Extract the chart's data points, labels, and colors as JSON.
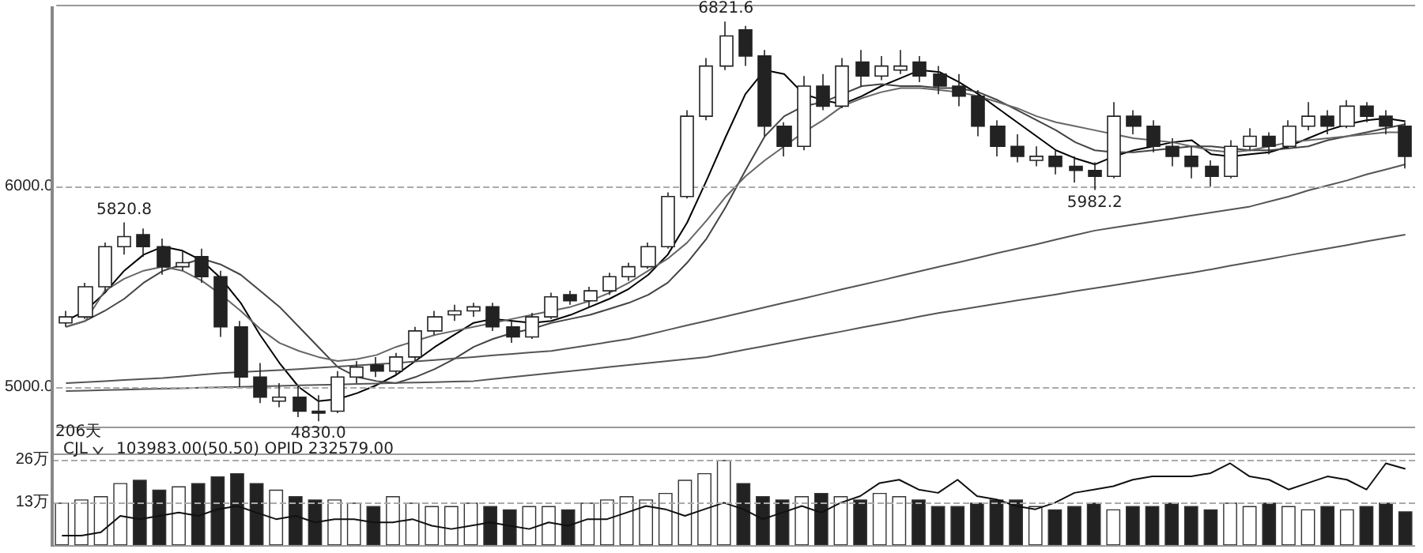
{
  "chart_data": [
    {
      "type": "candlestick",
      "categories": [
        null,
        null,
        null,
        null,
        null,
        null,
        null,
        null,
        null,
        null,
        null,
        null,
        null,
        null,
        null,
        null,
        null,
        null,
        null,
        null,
        null,
        null,
        null,
        null,
        null,
        null,
        null,
        null,
        null,
        null,
        null,
        null,
        null,
        null,
        null,
        null,
        null,
        null,
        null,
        null,
        null,
        null,
        null,
        null,
        null,
        null,
        null,
        null,
        null,
        null,
        null,
        null,
        null,
        null,
        null,
        null,
        null,
        null,
        null,
        null,
        null,
        null,
        null,
        null,
        null,
        null,
        null,
        null,
        null,
        null
      ],
      "ohlc": [
        [
          5320,
          5380,
          5300,
          5350
        ],
        [
          5350,
          5520,
          5340,
          5500
        ],
        [
          5500,
          5720,
          5480,
          5700
        ],
        [
          5700,
          5820.8,
          5660,
          5750
        ],
        [
          5760,
          5790,
          5650,
          5700
        ],
        [
          5700,
          5740,
          5560,
          5600
        ],
        [
          5600,
          5680,
          5580,
          5620
        ],
        [
          5650,
          5690,
          5520,
          5550
        ],
        [
          5550,
          5580,
          5250,
          5300
        ],
        [
          5300,
          5330,
          5000,
          5050
        ],
        [
          5050,
          5120,
          4920,
          4950
        ],
        [
          4930,
          5020,
          4900,
          4950
        ],
        [
          4950,
          5000,
          4850,
          4880
        ],
        [
          4880,
          4960,
          4830,
          4870
        ],
        [
          4880,
          5080,
          4870,
          5050
        ],
        [
          5050,
          5130,
          5020,
          5100
        ],
        [
          5110,
          5150,
          5050,
          5080
        ],
        [
          5080,
          5170,
          5060,
          5150
        ],
        [
          5150,
          5300,
          5130,
          5280
        ],
        [
          5280,
          5380,
          5260,
          5350
        ],
        [
          5360,
          5410,
          5330,
          5380
        ],
        [
          5380,
          5420,
          5350,
          5400
        ],
        [
          5400,
          5420,
          5280,
          5300
        ],
        [
          5300,
          5330,
          5220,
          5250
        ],
        [
          5250,
          5370,
          5240,
          5350
        ],
        [
          5350,
          5470,
          5340,
          5450
        ],
        [
          5460,
          5480,
          5410,
          5430
        ],
        [
          5430,
          5500,
          5400,
          5480
        ],
        [
          5480,
          5570,
          5460,
          5550
        ],
        [
          5550,
          5620,
          5530,
          5600
        ],
        [
          5600,
          5720,
          5590,
          5700
        ],
        [
          5700,
          5970,
          5690,
          5950
        ],
        [
          5950,
          6380,
          5940,
          6350
        ],
        [
          6350,
          6640,
          6330,
          6600
        ],
        [
          6600,
          6821.6,
          6580,
          6750
        ],
        [
          6780,
          6800,
          6600,
          6650
        ],
        [
          6650,
          6680,
          6250,
          6300
        ],
        [
          6300,
          6320,
          6150,
          6200
        ],
        [
          6200,
          6550,
          6180,
          6500
        ],
        [
          6500,
          6560,
          6380,
          6400
        ],
        [
          6400,
          6640,
          6390,
          6600
        ],
        [
          6620,
          6680,
          6500,
          6550
        ],
        [
          6550,
          6650,
          6530,
          6600
        ],
        [
          6580,
          6680,
          6560,
          6600
        ],
        [
          6620,
          6650,
          6520,
          6550
        ],
        [
          6560,
          6600,
          6460,
          6500
        ],
        [
          6500,
          6560,
          6400,
          6450
        ],
        [
          6450,
          6480,
          6250,
          6300
        ],
        [
          6300,
          6330,
          6150,
          6200
        ],
        [
          6200,
          6260,
          6120,
          6150
        ],
        [
          6130,
          6200,
          6100,
          6150
        ],
        [
          6150,
          6180,
          6060,
          6100
        ],
        [
          6100,
          6150,
          6020,
          6080
        ],
        [
          6080,
          6120,
          5982.2,
          6050
        ],
        [
          6050,
          6420,
          6040,
          6350
        ],
        [
          6350,
          6380,
          6260,
          6300
        ],
        [
          6300,
          6330,
          6170,
          6200
        ],
        [
          6200,
          6240,
          6100,
          6150
        ],
        [
          6150,
          6200,
          6040,
          6100
        ],
        [
          6100,
          6130,
          6000,
          6050
        ],
        [
          6050,
          6230,
          6040,
          6200
        ],
        [
          6200,
          6290,
          6180,
          6250
        ],
        [
          6250,
          6270,
          6160,
          6200
        ],
        [
          6200,
          6330,
          6190,
          6300
        ],
        [
          6300,
          6420,
          6280,
          6350
        ],
        [
          6350,
          6380,
          6260,
          6300
        ],
        [
          6300,
          6430,
          6290,
          6400
        ],
        [
          6400,
          6420,
          6320,
          6350
        ],
        [
          6350,
          6380,
          6260,
          6300
        ],
        [
          6300,
          6320,
          6090,
          6150
        ]
      ],
      "series": [
        {
          "type": "line",
          "color": "#000000",
          "values": [
            5330,
            5380,
            5470,
            5580,
            5660,
            5700,
            5680,
            5630,
            5540,
            5420,
            5260,
            5120,
            5000,
            4930,
            4940,
            4970,
            5010,
            5060,
            5130,
            5200,
            5260,
            5320,
            5340,
            5330,
            5320,
            5330,
            5360,
            5400,
            5440,
            5490,
            5560,
            5660,
            5820,
            6030,
            6250,
            6460,
            6580,
            6560,
            6460,
            6430,
            6410,
            6450,
            6500,
            6540,
            6580,
            6570,
            6520,
            6460,
            6390,
            6320,
            6250,
            6180,
            6140,
            6110,
            6150,
            6180,
            6200,
            6220,
            6230,
            6160,
            6150,
            6160,
            6170,
            6200,
            6240,
            6280,
            6310,
            6330,
            6340,
            6325
          ]
        },
        {
          "type": "line",
          "color": "#444444",
          "values": [
            5300,
            5330,
            5380,
            5440,
            5520,
            5580,
            5610,
            5640,
            5610,
            5560,
            5480,
            5400,
            5300,
            5200,
            5100,
            5050,
            5030,
            5020,
            5050,
            5090,
            5140,
            5200,
            5240,
            5270,
            5290,
            5320,
            5340,
            5360,
            5390,
            5420,
            5460,
            5520,
            5620,
            5740,
            5900,
            6080,
            6250,
            6350,
            6400,
            6420,
            6460,
            6500,
            6510,
            6500,
            6500,
            6490,
            6490,
            6470,
            6430,
            6380,
            6330,
            6280,
            6220,
            6180,
            6170,
            6170,
            6180,
            6190,
            6200,
            6200,
            6190,
            6180,
            6180,
            6190,
            6200,
            6230,
            6250,
            6270,
            6290,
            6310
          ]
        },
        {
          "type": "line",
          "color": "#666666",
          "values": [
            5300,
            5330,
            5480,
            5540,
            5580,
            5600,
            5580,
            5530,
            5460,
            5380,
            5290,
            5220,
            5180,
            5150,
            5130,
            5140,
            5160,
            5200,
            5230,
            5260,
            5280,
            5300,
            5320,
            5340,
            5360,
            5380,
            5400,
            5430,
            5470,
            5520,
            5580,
            5640,
            5720,
            5830,
            5950,
            6050,
            6130,
            6200,
            6270,
            6330,
            6400,
            6440,
            6470,
            6490,
            6490,
            6480,
            6470,
            6450,
            6420,
            6390,
            6350,
            6320,
            6300,
            6280,
            6260,
            6240,
            6230,
            6220,
            6200,
            6180,
            6170,
            6180,
            6200,
            6220,
            6230,
            6240,
            6250,
            6260,
            6270,
            6270
          ]
        },
        {
          "type": "line",
          "color": "#555555",
          "values": [
            5020,
            5025,
            5030,
            5035,
            5040,
            5045,
            5053,
            5062,
            5070,
            5075,
            5080,
            5085,
            5090,
            5096,
            5102,
            5108,
            5114,
            5120,
            5128,
            5135,
            5143,
            5150,
            5158,
            5165,
            5173,
            5180,
            5195,
            5210,
            5225,
            5240,
            5262,
            5285,
            5308,
            5330,
            5352,
            5375,
            5398,
            5420,
            5442,
            5465,
            5488,
            5510,
            5532,
            5555,
            5578,
            5600,
            5622,
            5645,
            5668,
            5690,
            5712,
            5735,
            5758,
            5780,
            5795,
            5810,
            5825,
            5840,
            5855,
            5870,
            5885,
            5900,
            5925,
            5950,
            5980,
            6005,
            6030,
            6060,
            6085,
            6110
          ]
        },
        {
          "type": "line",
          "color": "#555555",
          "values": [
            4980,
            4982,
            4985,
            4987,
            4990,
            4992,
            4994,
            4997,
            4999,
            5001,
            5004,
            5006,
            5009,
            5011,
            5013,
            5016,
            5018,
            5021,
            5023,
            5025,
            5028,
            5030,
            5040,
            5050,
            5060,
            5070,
            5080,
            5090,
            5100,
            5110,
            5120,
            5130,
            5140,
            5150,
            5168,
            5187,
            5205,
            5223,
            5242,
            5260,
            5278,
            5297,
            5315,
            5333,
            5352,
            5370,
            5385,
            5401,
            5416,
            5432,
            5447,
            5462,
            5478,
            5493,
            5508,
            5524,
            5539,
            5555,
            5570,
            5587,
            5605,
            5622,
            5639,
            5657,
            5674,
            5691,
            5708,
            5726,
            5743,
            5760
          ]
        }
      ],
      "ylim": [
        4800,
        6900
      ],
      "yticks": [
        {
          "value": 5000,
          "label": "5000.0"
        },
        {
          "value": 6000,
          "label": "6000.0"
        }
      ],
      "grid": "y",
      "tick_labels": "y",
      "marker": "none",
      "annotations": [
        {
          "text": "5820.8",
          "y": 5820.8
        },
        {
          "text": "4830.0",
          "y": 4830
        },
        {
          "text": "6821.6",
          "y": 6821.6
        },
        {
          "text": "5982.2",
          "y": 5982.2
        }
      ]
    },
    {
      "type": "bar",
      "title": "CJL",
      "subtitle": "103983.00(50.50) OPID 232579.00",
      "annotations": [
        "206天"
      ],
      "categories": [
        null,
        null,
        null,
        null,
        null,
        null,
        null,
        null,
        null,
        null,
        null,
        null,
        null,
        null,
        null,
        null,
        null,
        null,
        null,
        null,
        null,
        null,
        null,
        null,
        null,
        null,
        null,
        null,
        null,
        null,
        null,
        null,
        null,
        null,
        null,
        null,
        null,
        null,
        null,
        null,
        null,
        null,
        null,
        null,
        null,
        null,
        null,
        null,
        null,
        null,
        null,
        null,
        null,
        null,
        null,
        null,
        null,
        null,
        null,
        null,
        null,
        null,
        null,
        null,
        null,
        null,
        null,
        null,
        null,
        null
      ],
      "series": [
        {
          "type": "bar",
          "values": [
            13,
            14,
            15,
            19,
            20,
            17,
            18,
            19,
            21,
            22,
            19,
            17,
            15,
            14,
            14,
            13,
            12,
            15,
            13,
            12,
            12,
            13,
            12,
            11,
            12,
            12,
            11,
            13,
            14,
            15,
            14,
            16,
            20,
            22,
            26,
            19,
            15,
            14,
            15,
            16,
            15,
            14,
            16,
            15,
            14,
            12,
            12,
            13,
            14,
            14,
            12,
            11,
            12,
            13,
            11,
            12,
            12,
            13,
            12,
            11,
            13,
            12,
            13,
            12,
            11,
            12,
            11,
            12,
            13,
            10.4
          ],
          "colors": [
            "#ffffff",
            "#ffffff",
            "#ffffff",
            "#ffffff",
            "#222222",
            "#222222",
            "#ffffff",
            "#222222",
            "#222222",
            "#222222",
            "#222222",
            "#ffffff",
            "#222222",
            "#222222",
            "#ffffff",
            "#ffffff",
            "#222222",
            "#ffffff",
            "#ffffff",
            "#ffffff",
            "#ffffff",
            "#ffffff",
            "#222222",
            "#222222",
            "#ffffff",
            "#ffffff",
            "#222222",
            "#ffffff",
            "#ffffff",
            "#ffffff",
            "#ffffff",
            "#ffffff",
            "#ffffff",
            "#ffffff",
            "#ffffff",
            "#222222",
            "#222222",
            "#222222",
            "#ffffff",
            "#222222",
            "#ffffff",
            "#222222",
            "#ffffff",
            "#ffffff",
            "#222222",
            "#222222",
            "#222222",
            "#222222",
            "#222222",
            "#222222",
            "#ffffff",
            "#222222",
            "#222222",
            "#222222",
            "#ffffff",
            "#222222",
            "#222222",
            "#222222",
            "#222222",
            "#222222",
            "#ffffff",
            "#ffffff",
            "#222222",
            "#ffffff",
            "#ffffff",
            "#222222",
            "#ffffff",
            "#222222",
            "#222222",
            "#222222"
          ]
        },
        {
          "type": "line",
          "color": "#111111",
          "values": [
            3,
            3,
            4,
            9,
            8,
            9,
            10,
            9,
            11,
            12,
            10,
            8,
            9,
            7,
            8,
            8,
            7,
            7,
            8,
            6,
            5,
            6,
            7,
            6,
            5,
            7,
            6,
            8,
            8,
            10,
            12,
            11,
            9,
            11,
            13,
            11,
            8,
            10,
            12,
            10,
            13,
            15,
            19,
            20,
            17,
            16,
            20,
            15,
            14,
            12,
            11,
            13,
            16,
            17,
            18,
            20,
            21,
            21,
            21,
            22,
            25,
            21,
            20,
            17,
            19,
            21,
            20,
            17,
            25,
            23.3
          ]
        }
      ],
      "ylim": [
        0,
        28
      ],
      "yticks": [
        {
          "value": 13,
          "label": "13万"
        },
        {
          "value": 26,
          "label": "26万"
        }
      ],
      "grid": "y",
      "tick_labels": "y",
      "marker": "none"
    }
  ]
}
